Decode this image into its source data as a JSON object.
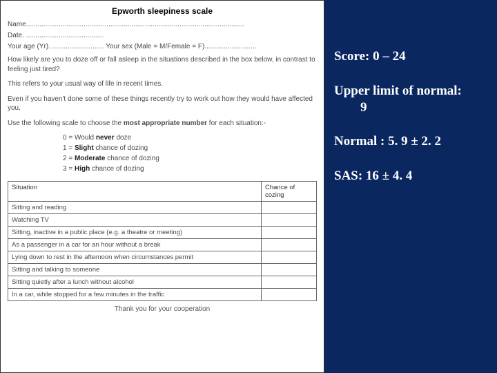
{
  "form": {
    "title": "Epworth sleepiness scale",
    "name_line": "Name..................................................................................................................",
    "date_line": "Date. .........................................",
    "age_sex_line": "Your age (Yr). ...........................   Your sex (Male = M/Female = F)...........................",
    "instr1": "How likely are you to doze off or fall asleep in the situations described in the box below, in contrast to feeling just tired?",
    "instr2": "This refers to your usual way of life in recent times.",
    "instr3": "Even if you haven't done some of these things recently try to work out how they would have affected you.",
    "instr4_pre": "Use the following scale to choose the ",
    "instr4_bold": "most appropriate number",
    "instr4_post": " for each situation:-",
    "scale0_pre": "0 = Would ",
    "scale0_b": "never",
    "scale0_post": " doze",
    "scale1_pre": "1 = ",
    "scale1_b": "Slight",
    "scale1_post": " chance of dozing",
    "scale2_pre": "2 = ",
    "scale2_b": "Moderate",
    "scale2_post": " chance of dozing",
    "scale3_pre": "3 = ",
    "scale3_b": "High",
    "scale3_post": " chance of dozing",
    "col_situation": "Situation",
    "col_chance": "Chance of cozing",
    "rows": [
      "Sitting and reading",
      "Watching TV",
      "Sitting, inactive in a public place (e.g. a theatre or meeting)",
      "As a passenger in a car for an hour without a break",
      "Lying down to rest in the afternoon when circumstances permit",
      "Sitting and talking to someone",
      "Sitting quietly after a lunch without alcohol",
      "In a car, while stopped for a few minutes in the traffic"
    ],
    "thanks": "Thank you for your cooperation"
  },
  "side": {
    "line1": "Score: 0 – 24",
    "line2a": "Upper limit of normal:",
    "line2b": "9",
    "line3": "Normal : 5. 9 ± 2. 2",
    "line4": "SAS: 16 ± 4. 4"
  },
  "style": {
    "bg": "#0a2760",
    "panel_bg": "#ffffff",
    "side_text": "#ffffff",
    "side_font": "Times New Roman",
    "side_fontsize": 19
  }
}
